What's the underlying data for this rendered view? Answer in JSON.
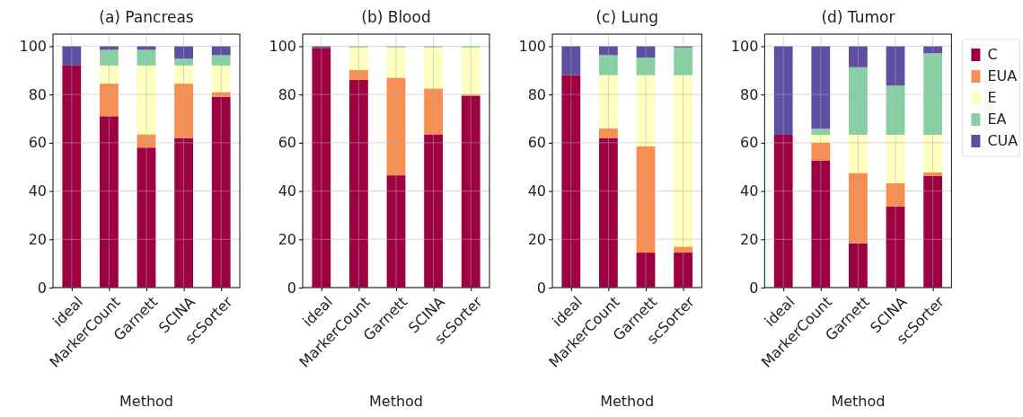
{
  "chart_data": [
    {
      "type": "bar",
      "title": "(a) Pancreas",
      "xlabel": "Method",
      "categories": [
        "ideal",
        "MarkerCount",
        "Garnett",
        "SCINA",
        "scSorter"
      ],
      "stacked": true,
      "ylim": [
        0,
        105
      ],
      "yticks": [
        0,
        20,
        40,
        60,
        80,
        100
      ],
      "grid": true,
      "legend": false,
      "series": [
        {
          "color": "#9e0142",
          "values": [
            92,
            71,
            58,
            62,
            79
          ]
        },
        {
          "color": "#f98e52",
          "values": [
            0,
            13.5,
            5.5,
            22.5,
            2
          ]
        },
        {
          "color": "#ffffbf",
          "values": [
            0,
            7.5,
            28.5,
            7.5,
            11
          ]
        },
        {
          "color": "#88d0a4",
          "values": [
            0,
            6.5,
            6.5,
            2.8,
            4.3
          ]
        },
        {
          "color": "#5e4fa2",
          "values": [
            8,
            1.5,
            1.5,
            5.2,
            3.7
          ]
        }
      ]
    },
    {
      "type": "bar",
      "title": "(b) Blood",
      "xlabel": "Method",
      "categories": [
        "ideal",
        "MarkerCount",
        "Garnett",
        "SCINA",
        "scSorter"
      ],
      "stacked": true,
      "ylim": [
        0,
        105
      ],
      "yticks": [
        0,
        20,
        40,
        60,
        80,
        100
      ],
      "grid": true,
      "legend": false,
      "series": [
        {
          "color": "#9e0142",
          "values": [
            99.3,
            86,
            46.5,
            63.5,
            79.5
          ]
        },
        {
          "color": "#f98e52",
          "values": [
            0,
            4.2,
            40.5,
            19,
            0.5
          ]
        },
        {
          "color": "#ffffbf",
          "values": [
            0,
            9.3,
            12.5,
            17,
            19.5
          ]
        },
        {
          "color": "#88d0a4",
          "values": [
            0,
            0.5,
            0.5,
            0.5,
            0.5
          ]
        },
        {
          "color": "#5e4fa2",
          "values": [
            0.7,
            0,
            0,
            0,
            0
          ]
        }
      ]
    },
    {
      "type": "bar",
      "title": "(c) Lung",
      "xlabel": "Method",
      "categories": [
        "ideal",
        "MarkerCount",
        "Garnett",
        "scSorter"
      ],
      "stacked": true,
      "ylim": [
        0,
        105
      ],
      "yticks": [
        0,
        20,
        40,
        60,
        80,
        100
      ],
      "grid": true,
      "legend": false,
      "series": [
        {
          "color": "#9e0142",
          "values": [
            88,
            62,
            14.5,
            14.5
          ]
        },
        {
          "color": "#f98e52",
          "values": [
            0,
            4,
            44,
            2.5
          ]
        },
        {
          "color": "#ffffbf",
          "values": [
            0,
            22,
            29.5,
            71
          ]
        },
        {
          "color": "#88d0a4",
          "values": [
            0,
            8.3,
            7.3,
            11.5
          ]
        },
        {
          "color": "#5e4fa2",
          "values": [
            12,
            3.7,
            4.7,
            0.5
          ]
        }
      ]
    },
    {
      "type": "bar",
      "title": "(d) Tumor",
      "xlabel": "Method",
      "categories": [
        "ideal",
        "MarkerCount",
        "Garnett",
        "SCINA",
        "scSorter"
      ],
      "stacked": true,
      "ylim": [
        0,
        105
      ],
      "yticks": [
        0,
        20,
        40,
        60,
        80,
        100
      ],
      "grid": true,
      "legend": "right",
      "series": [
        {
          "name": "C",
          "color": "#9e0142",
          "values": [
            63.3,
            52.7,
            18.3,
            33.5,
            46.3
          ]
        },
        {
          "name": "EUA",
          "color": "#f98e52",
          "values": [
            0,
            7.3,
            29.2,
            9.7,
            1.5
          ]
        },
        {
          "name": "E",
          "color": "#ffffbf",
          "values": [
            0,
            3.3,
            15.8,
            20.1,
            15.5
          ]
        },
        {
          "name": "EA",
          "color": "#88d0a4",
          "values": [
            0,
            2.5,
            28,
            20.4,
            33.8
          ]
        },
        {
          "name": "CUA",
          "color": "#5e4fa2",
          "values": [
            36.7,
            34.2,
            8.7,
            16.3,
            2.9
          ]
        }
      ]
    }
  ]
}
